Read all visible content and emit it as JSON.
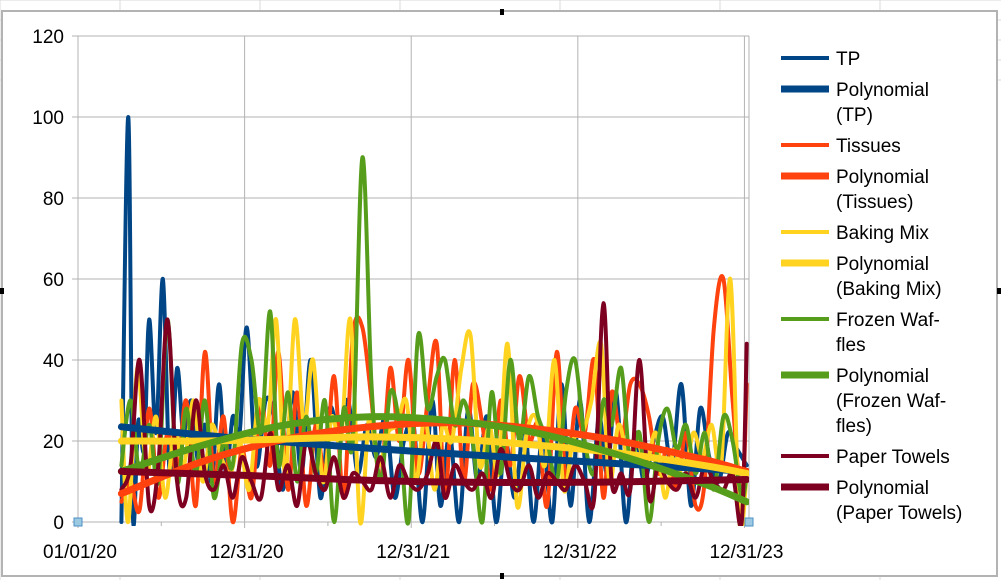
{
  "chart_data": {
    "type": "line",
    "title": "",
    "xlabel": "",
    "ylabel": "",
    "ylim": [
      0,
      120
    ],
    "yticks": [
      0,
      20,
      40,
      60,
      80,
      100,
      120
    ],
    "xlim": [
      "2020-01-01",
      "2024-01-10"
    ],
    "xticks": [
      {
        "date": "2020-01-01",
        "label": "01/01/20"
      },
      {
        "date": "2020-12-31",
        "label": "12/31/20"
      },
      {
        "date": "2021-12-31",
        "label": "12/31/21"
      },
      {
        "date": "2022-12-31",
        "label": "12/31/22"
      },
      {
        "date": "2023-12-31",
        "label": "12/31/23"
      }
    ],
    "grid": true,
    "legend_position": "right",
    "series": [
      {
        "name": "TP",
        "kind": "data",
        "color": "#004586",
        "x": [
          "2020-04-05",
          "2020-04-20",
          "2020-04-30",
          "2020-05-12",
          "2020-05-25",
          "2020-06-05",
          "2020-06-20",
          "2020-07-05",
          "2020-07-20",
          "2020-08-05",
          "2020-08-20",
          "2020-09-05",
          "2020-09-20",
          "2020-10-05",
          "2020-10-20",
          "2020-11-05",
          "2020-11-20",
          "2020-12-05",
          "2020-12-20",
          "2021-01-05",
          "2021-01-25",
          "2021-02-15",
          "2021-03-05",
          "2021-03-25",
          "2021-04-15",
          "2021-05-05",
          "2021-05-25",
          "2021-06-15",
          "2021-07-05",
          "2021-07-25",
          "2021-08-15",
          "2021-09-05",
          "2021-09-25",
          "2021-10-15",
          "2021-11-05",
          "2021-11-25",
          "2021-12-15",
          "2022-01-05",
          "2022-01-25",
          "2022-02-15",
          "2022-03-05",
          "2022-03-25",
          "2022-04-15",
          "2022-05-05",
          "2022-05-25",
          "2022-06-15",
          "2022-07-05",
          "2022-07-25",
          "2022-08-15",
          "2022-09-05",
          "2022-09-25",
          "2022-10-15",
          "2022-11-05",
          "2022-11-25",
          "2022-12-15",
          "2023-01-05",
          "2023-01-25",
          "2023-02-15",
          "2023-03-05",
          "2023-03-25",
          "2023-04-15",
          "2023-05-05",
          "2023-05-25",
          "2023-06-15",
          "2023-07-05",
          "2023-07-25",
          "2023-08-15",
          "2023-09-05",
          "2023-09-25",
          "2023-10-15",
          "2023-11-05",
          "2023-11-25",
          "2023-12-15",
          "2024-01-05"
        ],
        "y": [
          0,
          100,
          2,
          25,
          18,
          50,
          22,
          60,
          12,
          38,
          20,
          30,
          15,
          24,
          10,
          34,
          12,
          26,
          22,
          48,
          14,
          30,
          26,
          8,
          32,
          12,
          40,
          6,
          28,
          22,
          30,
          12,
          24,
          16,
          26,
          6,
          20,
          24,
          0,
          30,
          4,
          22,
          0,
          28,
          10,
          26,
          0,
          20,
          6,
          24,
          0,
          22,
          0,
          34,
          4,
          30,
          0,
          26,
          12,
          32,
          0,
          22,
          10,
          20,
          26,
          14,
          34,
          4,
          28,
          16,
          10,
          22,
          18,
          14
        ]
      },
      {
        "name": "Polynomial (TP)",
        "kind": "trend",
        "color": "#004586",
        "x": [
          "2020-04-05",
          "2021-01-01",
          "2022-01-01",
          "2023-01-01",
          "2024-01-05"
        ],
        "y": [
          23.5,
          20.5,
          17.5,
          15,
          12.5
        ]
      },
      {
        "name": "Tissues",
        "kind": "data",
        "color": "#ff420e",
        "x": [
          "2020-04-05",
          "2020-04-25",
          "2020-05-15",
          "2020-06-05",
          "2020-06-25",
          "2020-07-15",
          "2020-08-05",
          "2020-08-25",
          "2020-09-15",
          "2020-10-05",
          "2020-10-25",
          "2020-11-15",
          "2020-12-05",
          "2020-12-25",
          "2021-01-15",
          "2021-02-05",
          "2021-02-25",
          "2021-03-15",
          "2021-04-05",
          "2021-04-25",
          "2021-05-15",
          "2021-06-05",
          "2021-06-25",
          "2021-07-15",
          "2021-08-05",
          "2021-08-25",
          "2021-09-15",
          "2021-10-05",
          "2021-10-25",
          "2021-11-15",
          "2021-12-05",
          "2021-12-25",
          "2022-01-15",
          "2022-02-05",
          "2022-02-25",
          "2022-03-15",
          "2022-04-05",
          "2022-04-25",
          "2022-05-15",
          "2022-06-05",
          "2022-06-25",
          "2022-07-15",
          "2022-08-05",
          "2022-08-25",
          "2022-09-15",
          "2022-10-05",
          "2022-10-25",
          "2022-11-15",
          "2022-12-05",
          "2022-12-25",
          "2023-01-15",
          "2023-02-05",
          "2023-02-25",
          "2023-03-15",
          "2023-04-05",
          "2023-04-25",
          "2023-05-15",
          "2023-06-05",
          "2023-06-25",
          "2023-07-15",
          "2023-08-05",
          "2023-08-25",
          "2023-09-15",
          "2023-10-05",
          "2023-10-25",
          "2023-11-15",
          "2023-12-05",
          "2023-12-25",
          "2024-01-05"
        ],
        "y": [
          5,
          10,
          3,
          28,
          6,
          22,
          12,
          30,
          4,
          42,
          10,
          26,
          0,
          18,
          6,
          30,
          14,
          42,
          8,
          32,
          4,
          24,
          12,
          36,
          6,
          46,
          48,
          30,
          10,
          38,
          20,
          40,
          12,
          30,
          44,
          6,
          40,
          10,
          34,
          24,
          8,
          30,
          14,
          36,
          20,
          24,
          4,
          42,
          10,
          28,
          22,
          40,
          6,
          32,
          20,
          34,
          34,
          26,
          12,
          18,
          8,
          22,
          4,
          10,
          48,
          60,
          30,
          6,
          34
        ]
      },
      {
        "name": "Polynomial (Tissues)",
        "kind": "trend",
        "color": "#ff420e",
        "x": [
          "2020-04-05",
          "2020-10-01",
          "2021-04-01",
          "2021-10-01",
          "2022-04-01",
          "2022-10-01",
          "2023-04-01",
          "2023-10-01",
          "2024-01-05"
        ],
        "y": [
          7,
          15,
          20.5,
          23.5,
          24.5,
          23,
          20,
          15.5,
          12.5
        ]
      },
      {
        "name": "Baking Mix",
        "kind": "data",
        "color": "#ffd320",
        "x": [
          "2020-04-05",
          "2020-04-20",
          "2020-05-10",
          "2020-05-30",
          "2020-06-20",
          "2020-07-10",
          "2020-07-30",
          "2020-08-20",
          "2020-09-10",
          "2020-09-30",
          "2020-10-20",
          "2020-11-10",
          "2020-11-30",
          "2020-12-20",
          "2021-01-10",
          "2021-01-30",
          "2021-02-20",
          "2021-03-10",
          "2021-03-30",
          "2021-04-20",
          "2021-05-10",
          "2021-05-30",
          "2021-06-20",
          "2021-07-10",
          "2021-07-30",
          "2021-08-20",
          "2021-09-10",
          "2021-09-30",
          "2021-10-20",
          "2021-11-10",
          "2021-11-30",
          "2021-12-20",
          "2022-01-10",
          "2022-01-30",
          "2022-02-20",
          "2022-03-10",
          "2022-03-30",
          "2022-04-20",
          "2022-05-10",
          "2022-05-30",
          "2022-06-20",
          "2022-07-10",
          "2022-07-30",
          "2022-08-20",
          "2022-09-10",
          "2022-09-30",
          "2022-10-20",
          "2022-11-10",
          "2022-11-30",
          "2022-12-20",
          "2023-01-10",
          "2023-01-30",
          "2023-02-20",
          "2023-03-10",
          "2023-03-30",
          "2023-04-20",
          "2023-05-10",
          "2023-05-30",
          "2023-06-20",
          "2023-07-10",
          "2023-07-30",
          "2023-08-20",
          "2023-09-10",
          "2023-09-30",
          "2023-10-20",
          "2023-11-10",
          "2023-11-30",
          "2023-12-20",
          "2024-01-05"
        ],
        "y": [
          30,
          0,
          38,
          12,
          26,
          6,
          22,
          14,
          30,
          10,
          24,
          16,
          12,
          20,
          8,
          30,
          24,
          50,
          12,
          50,
          24,
          40,
          10,
          26,
          20,
          50,
          0,
          26,
          14,
          22,
          24,
          30,
          10,
          26,
          8,
          24,
          20,
          38,
          46,
          14,
          24,
          12,
          44,
          4,
          22,
          26,
          14,
          40,
          8,
          20,
          22,
          30,
          44,
          10,
          24,
          16,
          20,
          14,
          22,
          6,
          18,
          10,
          22,
          16,
          24,
          14,
          60,
          0,
          12
        ]
      },
      {
        "name": "Polynomial (Baking Mix)",
        "kind": "trend",
        "color": "#ffd320",
        "x": [
          "2020-04-05",
          "2020-10-01",
          "2021-04-01",
          "2021-10-01",
          "2022-04-01",
          "2022-10-01",
          "2023-04-01",
          "2023-10-01",
          "2024-01-05"
        ],
        "y": [
          20,
          20,
          20.5,
          21,
          20.5,
          19,
          17,
          14,
          12
        ]
      },
      {
        "name": "Frozen Waffles",
        "kind": "data",
        "color": "#579d1c",
        "x": [
          "2020-04-05",
          "2020-04-25",
          "2020-05-15",
          "2020-06-05",
          "2020-06-25",
          "2020-07-15",
          "2020-08-05",
          "2020-08-25",
          "2020-09-15",
          "2020-10-05",
          "2020-10-25",
          "2020-11-15",
          "2020-12-05",
          "2020-12-25",
          "2021-01-15",
          "2021-02-05",
          "2021-02-25",
          "2021-03-15",
          "2021-04-05",
          "2021-04-25",
          "2021-05-15",
          "2021-06-05",
          "2021-06-25",
          "2021-07-15",
          "2021-08-05",
          "2021-08-25",
          "2021-09-15",
          "2021-10-05",
          "2021-10-25",
          "2021-11-15",
          "2021-12-05",
          "2021-12-25",
          "2022-01-15",
          "2022-02-05",
          "2022-02-25",
          "2022-03-15",
          "2022-04-05",
          "2022-04-25",
          "2022-05-15",
          "2022-06-05",
          "2022-06-25",
          "2022-07-15",
          "2022-08-05",
          "2022-08-25",
          "2022-09-15",
          "2022-10-05",
          "2022-10-25",
          "2022-11-15",
          "2022-12-05",
          "2022-12-25",
          "2023-01-15",
          "2023-02-05",
          "2023-02-25",
          "2023-03-15",
          "2023-04-05",
          "2023-04-25",
          "2023-05-15",
          "2023-06-05",
          "2023-06-25",
          "2023-07-15",
          "2023-08-05",
          "2023-08-25",
          "2023-09-15",
          "2023-10-05",
          "2023-10-25",
          "2023-11-15",
          "2023-12-05",
          "2023-12-25",
          "2024-01-05"
        ],
        "y": [
          14,
          30,
          12,
          24,
          10,
          50,
          10,
          28,
          12,
          30,
          6,
          20,
          14,
          44,
          40,
          22,
          52,
          14,
          32,
          10,
          26,
          12,
          30,
          0,
          28,
          20,
          90,
          34,
          10,
          32,
          24,
          0,
          46,
          28,
          36,
          40,
          24,
          30,
          20,
          0,
          32,
          12,
          40,
          20,
          36,
          26,
          20,
          10,
          32,
          40,
          20,
          12,
          30,
          24,
          38,
          14,
          22,
          0,
          20,
          28,
          18,
          24,
          12,
          22,
          8,
          26,
          20,
          6,
          12
        ]
      },
      {
        "name": "Polynomial (Frozen Waffles)",
        "kind": "trend",
        "color": "#579d1c",
        "x": [
          "2020-04-05",
          "2020-10-01",
          "2021-04-01",
          "2021-10-01",
          "2022-04-01",
          "2022-10-01",
          "2023-04-01",
          "2023-10-01",
          "2024-01-05"
        ],
        "y": [
          12.5,
          19,
          24,
          26,
          25,
          22,
          16.5,
          9.5,
          5
        ]
      },
      {
        "name": "Paper Towels",
        "kind": "data",
        "color": "#7e0021",
        "x": [
          "2020-04-05",
          "2020-04-25",
          "2020-05-15",
          "2020-06-05",
          "2020-06-25",
          "2020-07-15",
          "2020-08-05",
          "2020-08-25",
          "2020-09-15",
          "2020-10-05",
          "2020-10-25",
          "2020-11-15",
          "2020-12-05",
          "2020-12-25",
          "2021-01-15",
          "2021-02-05",
          "2021-02-25",
          "2021-03-15",
          "2021-04-05",
          "2021-04-25",
          "2021-05-15",
          "2021-06-05",
          "2021-06-25",
          "2021-07-15",
          "2021-08-05",
          "2021-08-25",
          "2021-09-15",
          "2021-10-05",
          "2021-10-25",
          "2021-11-15",
          "2021-12-05",
          "2021-12-25",
          "2022-01-15",
          "2022-02-05",
          "2022-02-25",
          "2022-03-15",
          "2022-04-05",
          "2022-04-25",
          "2022-05-15",
          "2022-06-05",
          "2022-06-25",
          "2022-07-15",
          "2022-08-05",
          "2022-08-25",
          "2022-09-15",
          "2022-10-05",
          "2022-10-25",
          "2022-11-15",
          "2022-12-05",
          "2022-12-25",
          "2023-01-15",
          "2023-02-05",
          "2023-02-25",
          "2023-03-15",
          "2023-04-05",
          "2023-04-25",
          "2023-05-15",
          "2023-06-05",
          "2023-06-25",
          "2023-07-15",
          "2023-08-05",
          "2023-08-25",
          "2023-09-15",
          "2023-10-05",
          "2023-10-25",
          "2023-11-15",
          "2023-12-05",
          "2023-12-25",
          "2024-01-05"
        ],
        "y": [
          8,
          14,
          40,
          4,
          14,
          50,
          10,
          6,
          30,
          12,
          8,
          14,
          6,
          16,
          10,
          6,
          22,
          8,
          14,
          4,
          20,
          12,
          8,
          16,
          6,
          12,
          10,
          8,
          16,
          6,
          14,
          10,
          8,
          12,
          20,
          6,
          14,
          10,
          8,
          12,
          6,
          18,
          10,
          8,
          14,
          6,
          12,
          10,
          8,
          14,
          10,
          6,
          54,
          10,
          12,
          8,
          40,
          6,
          14,
          10,
          8,
          12,
          6,
          14,
          10,
          8,
          12,
          0,
          44
        ]
      },
      {
        "name": "Polynomial (Paper Towels)",
        "kind": "trend",
        "color": "#7e0021",
        "x": [
          "2020-04-05",
          "2021-01-01",
          "2022-01-01",
          "2023-01-01",
          "2024-01-05"
        ],
        "y": [
          12.5,
          11.5,
          10,
          9.8,
          10.5
        ]
      }
    ]
  },
  "legend": {
    "items": [
      {
        "lines": [
          "TP"
        ],
        "color": "#004586",
        "trend": false
      },
      {
        "lines": [
          "Polynomial",
          "(TP)"
        ],
        "color": "#004586",
        "trend": true
      },
      {
        "lines": [
          "Tissues"
        ],
        "color": "#ff420e",
        "trend": false
      },
      {
        "lines": [
          "Polynomial",
          "(Tissues)"
        ],
        "color": "#ff420e",
        "trend": true
      },
      {
        "lines": [
          "Baking Mix"
        ],
        "color": "#ffd320",
        "trend": false
      },
      {
        "lines": [
          "Polynomial",
          "(Baking Mix)"
        ],
        "color": "#ffd320",
        "trend": true
      },
      {
        "lines": [
          "Frozen Waf-",
          "fles"
        ],
        "color": "#579d1c",
        "trend": false
      },
      {
        "lines": [
          "Polynomial",
          "(Frozen Waf-",
          "fles)"
        ],
        "color": "#579d1c",
        "trend": true
      },
      {
        "lines": [
          "Paper Towels"
        ],
        "color": "#7e0021",
        "trend": false
      },
      {
        "lines": [
          "Polynomial",
          "(Paper Towels)"
        ],
        "color": "#7e0021",
        "trend": true
      }
    ]
  }
}
